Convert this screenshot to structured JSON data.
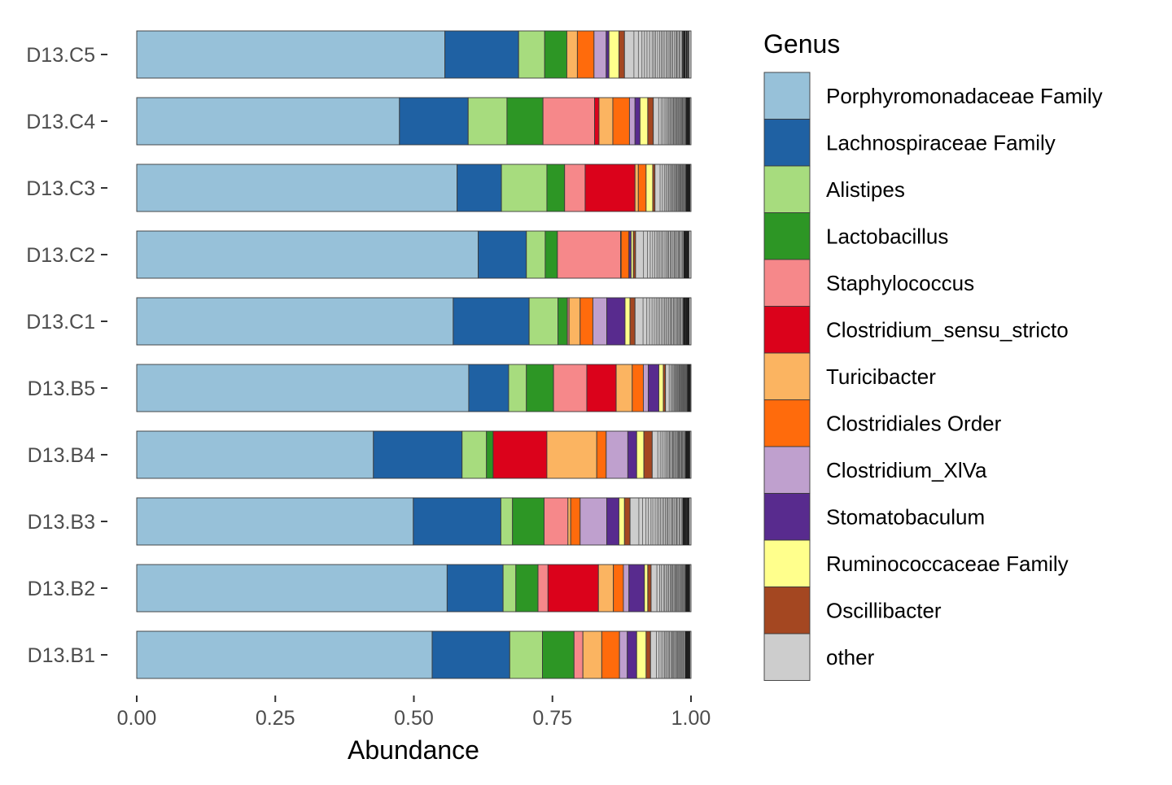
{
  "chart_data": {
    "type": "bar",
    "orientation": "horizontal",
    "stacked": true,
    "xlabel": "Abundance",
    "ylabel": "",
    "xlim": [
      0,
      1
    ],
    "x_ticks": [
      0,
      0.25,
      0.5,
      0.75,
      1
    ],
    "x_tick_labels": [
      "0.00",
      "0.25",
      "0.50",
      "0.75",
      "1.00"
    ],
    "grid": false,
    "legend_title": "Genus",
    "legend_position": "right",
    "categories": [
      "D13.C5",
      "D13.C4",
      "D13.C3",
      "D13.C2",
      "D13.C1",
      "D13.B5",
      "D13.B4",
      "D13.B3",
      "D13.B2",
      "D13.B1"
    ],
    "series": [
      {
        "name": "Porphyromonadaceae Family",
        "color": "#97c1d9",
        "values": [
          0.556,
          0.474,
          0.578,
          0.616,
          0.571,
          0.599,
          0.427,
          0.499,
          0.56,
          0.533
        ]
      },
      {
        "name": "Lachnospiraceae Family",
        "color": "#1f61a3",
        "values": [
          0.133,
          0.124,
          0.08,
          0.087,
          0.137,
          0.072,
          0.16,
          0.158,
          0.101,
          0.14
        ]
      },
      {
        "name": "Alistipes",
        "color": "#a7dc7e",
        "values": [
          0.047,
          0.07,
          0.082,
          0.034,
          0.052,
          0.032,
          0.044,
          0.021,
          0.023,
          0.059
        ]
      },
      {
        "name": "Lactobacillus",
        "color": "#2d9625",
        "values": [
          0.04,
          0.065,
          0.032,
          0.022,
          0.017,
          0.049,
          0.012,
          0.057,
          0.04,
          0.057
        ]
      },
      {
        "name": "Staphylococcus",
        "color": "#f6888a",
        "values": [
          0.0,
          0.093,
          0.037,
          0.114,
          0.003,
          0.06,
          0.0,
          0.043,
          0.018,
          0.016
        ]
      },
      {
        "name": "Clostridium_sensu_stricto",
        "color": "#db021b",
        "values": [
          0.0,
          0.008,
          0.09,
          0.001,
          0.0,
          0.053,
          0.097,
          0.0,
          0.091,
          0.0
        ]
      },
      {
        "name": "Turicibacter",
        "color": "#fbb461",
        "values": [
          0.019,
          0.025,
          0.006,
          0.0,
          0.02,
          0.029,
          0.09,
          0.005,
          0.027,
          0.034
        ]
      },
      {
        "name": "Clostridiales Order",
        "color": "#ff6b0c",
        "values": [
          0.03,
          0.03,
          0.014,
          0.014,
          0.023,
          0.02,
          0.017,
          0.017,
          0.018,
          0.032
        ]
      },
      {
        "name": "Clostridium_XlVa",
        "color": "#bfa0ce",
        "values": [
          0.022,
          0.01,
          0.0,
          0.0,
          0.025,
          0.009,
          0.039,
          0.048,
          0.01,
          0.014
        ]
      },
      {
        "name": "Stomatobaculum",
        "color": "#582b8e",
        "values": [
          0.005,
          0.009,
          0.0,
          0.004,
          0.033,
          0.019,
          0.016,
          0.022,
          0.028,
          0.017
        ]
      },
      {
        "name": "Ruminococcaceae Family",
        "color": "#ffff8c",
        "values": [
          0.018,
          0.014,
          0.012,
          0.004,
          0.009,
          0.008,
          0.013,
          0.01,
          0.006,
          0.017
        ]
      },
      {
        "name": "Oscillibacter",
        "color": "#a44721",
        "values": [
          0.01,
          0.01,
          0.004,
          0.004,
          0.009,
          0.004,
          0.015,
          0.01,
          0.006,
          0.008
        ]
      },
      {
        "name": "other",
        "color": "#cdcdcd",
        "values": [
          0.12,
          0.068,
          0.065,
          0.1,
          0.101,
          0.046,
          0.07,
          0.11,
          0.072,
          0.073
        ]
      }
    ]
  }
}
